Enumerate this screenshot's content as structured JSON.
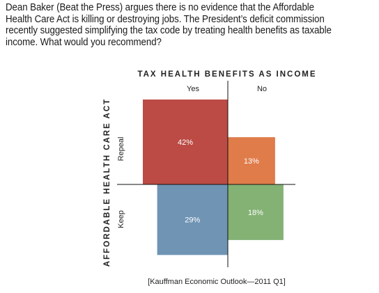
{
  "question": "Dean Baker (Beat the Press) argues there is no evidence that the Affordable Health Care Act is killing or destroying jobs. The President’s deficit commission recently suggested simplifying the tax code by treating health benefits as taxable income. What would you recommend?",
  "source": "[Kauffman Economic Outlook—2011 Q1]",
  "chart_data": {
    "type": "quadrant",
    "title": "TAX HEALTH BENEFITS AS INCOME",
    "ylabel": "AFFORDABLE HEALTH CARE ACT",
    "columns": [
      "Yes",
      "No"
    ],
    "rows": [
      "Repeal",
      "Keep"
    ],
    "cells": [
      {
        "row": "Repeal",
        "column": "Yes",
        "value": 42,
        "label": "42%",
        "color": "#bb4b44"
      },
      {
        "row": "Repeal",
        "column": "No",
        "value": 13,
        "label": "13%",
        "color": "#df7c4a"
      },
      {
        "row": "Keep",
        "column": "Yes",
        "value": 29,
        "label": "29%",
        "color": "#6f94b4"
      },
      {
        "row": "Keep",
        "column": "No",
        "value": 18,
        "label": "18%",
        "color": "#83b274"
      }
    ]
  }
}
